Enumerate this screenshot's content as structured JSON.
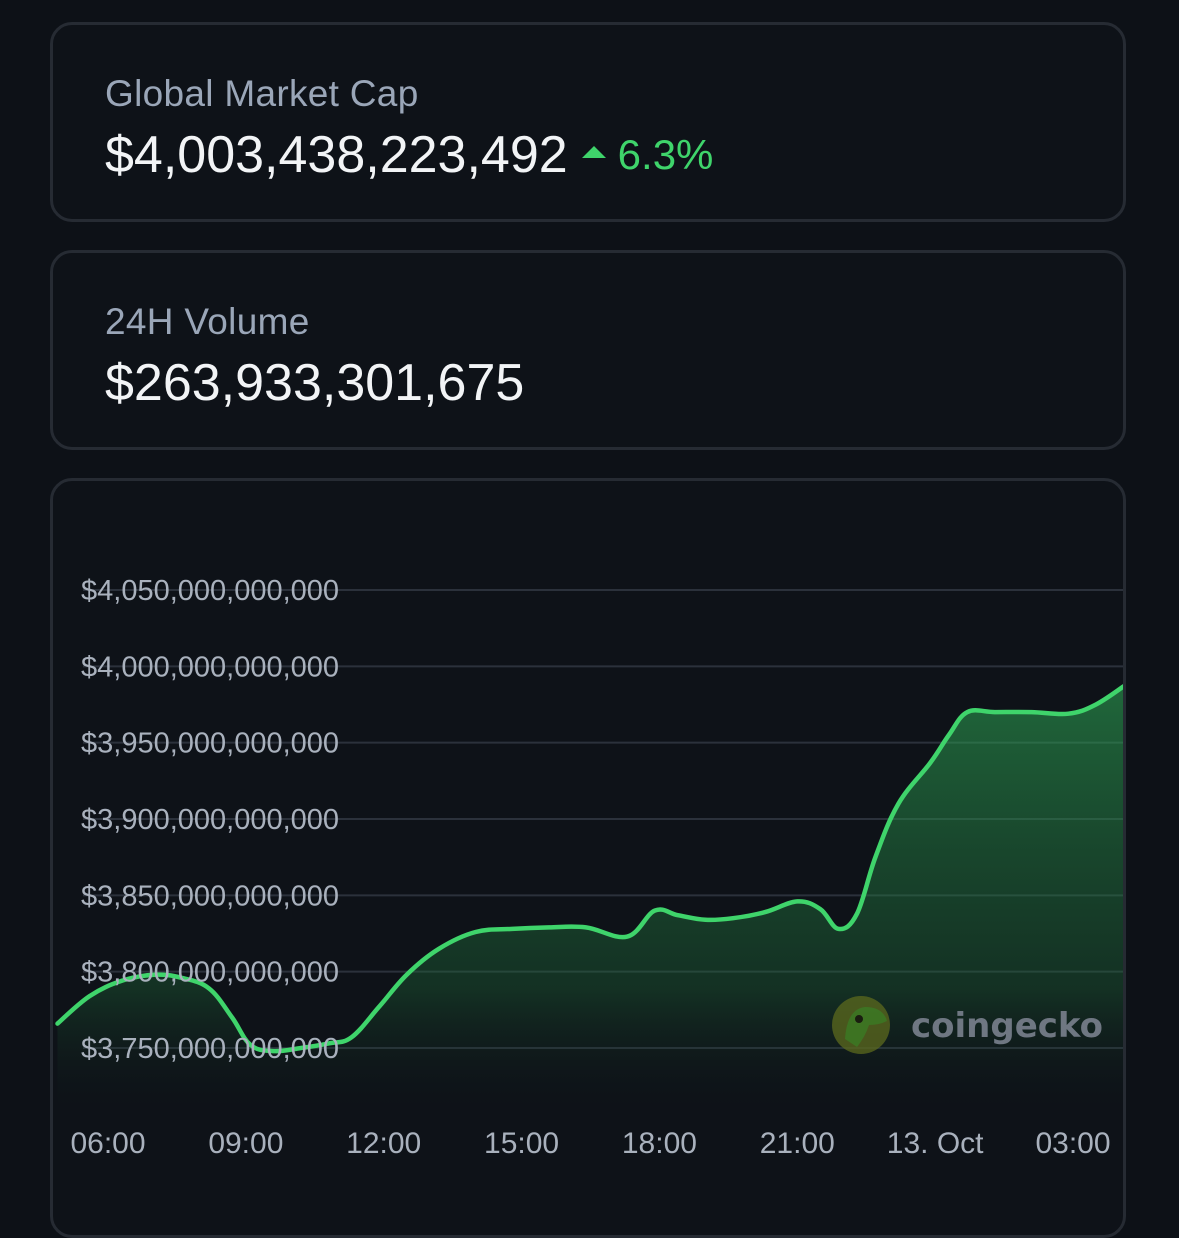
{
  "market_cap": {
    "label": "Global Market Cap",
    "value": "$4,003,438,223,492",
    "change": "6.3%",
    "change_direction": "up",
    "change_color": "#3fd46b",
    "change_icon": "triangle-up-icon"
  },
  "volume": {
    "label": "24H Volume",
    "value": "$263,933,301,675"
  },
  "watermark": {
    "text": "coingecko",
    "icon": "coingecko-logo"
  },
  "chart_data": {
    "type": "area",
    "title": "",
    "xlabel": "",
    "ylabel": "",
    "line_color": "#3fd46b",
    "grid": true,
    "ylim": [
      3730000000000,
      4080000000000
    ],
    "y_ticks": [
      3750000000000,
      3800000000000,
      3850000000000,
      3900000000000,
      3950000000000,
      4000000000000,
      4050000000000
    ],
    "y_tick_labels": [
      "$3,750,000,000,000",
      "$3,800,000,000,000",
      "$3,850,000,000,000",
      "$3,900,000,000,000",
      "$3,950,000,000,000",
      "$4,000,000,000,000",
      "$4,050,000,000,000"
    ],
    "x_tick_labels": [
      "06:00",
      "09:00",
      "12:00",
      "15:00",
      "18:00",
      "21:00",
      "13. Oct",
      "03:00"
    ],
    "x_tick_hours": [
      6,
      9,
      12,
      15,
      18,
      21,
      24,
      27
    ],
    "x_range_hours": [
      4.9,
      28.2
    ],
    "x_unit": "hour (12 Oct; 24 = 13 Oct 00:00)",
    "points": [
      {
        "x": 4.9,
        "y": 3766000000000
      },
      {
        "x": 5.6,
        "y": 3784000000000
      },
      {
        "x": 6.3,
        "y": 3794000000000
      },
      {
        "x": 7.0,
        "y": 3798000000000
      },
      {
        "x": 7.6,
        "y": 3796000000000
      },
      {
        "x": 8.2,
        "y": 3789000000000
      },
      {
        "x": 8.7,
        "y": 3770000000000
      },
      {
        "x": 9.1,
        "y": 3752000000000
      },
      {
        "x": 9.6,
        "y": 3748000000000
      },
      {
        "x": 10.2,
        "y": 3750000000000
      },
      {
        "x": 10.8,
        "y": 3753000000000
      },
      {
        "x": 11.3,
        "y": 3757000000000
      },
      {
        "x": 11.9,
        "y": 3777000000000
      },
      {
        "x": 12.5,
        "y": 3798000000000
      },
      {
        "x": 13.2,
        "y": 3815000000000
      },
      {
        "x": 14.0,
        "y": 3826000000000
      },
      {
        "x": 14.8,
        "y": 3828000000000
      },
      {
        "x": 15.6,
        "y": 3829000000000
      },
      {
        "x": 16.4,
        "y": 3829000000000
      },
      {
        "x": 17.3,
        "y": 3823000000000
      },
      {
        "x": 17.9,
        "y": 3840000000000
      },
      {
        "x": 18.4,
        "y": 3837000000000
      },
      {
        "x": 19.0,
        "y": 3834000000000
      },
      {
        "x": 19.6,
        "y": 3835000000000
      },
      {
        "x": 20.3,
        "y": 3839000000000
      },
      {
        "x": 21.0,
        "y": 3846000000000
      },
      {
        "x": 21.5,
        "y": 3841000000000
      },
      {
        "x": 21.9,
        "y": 3828000000000
      },
      {
        "x": 22.3,
        "y": 3838000000000
      },
      {
        "x": 22.7,
        "y": 3875000000000
      },
      {
        "x": 23.2,
        "y": 3910000000000
      },
      {
        "x": 23.9,
        "y": 3937000000000
      },
      {
        "x": 24.3,
        "y": 3955000000000
      },
      {
        "x": 24.7,
        "y": 3970000000000
      },
      {
        "x": 25.3,
        "y": 3970000000000
      },
      {
        "x": 26.1,
        "y": 3970000000000
      },
      {
        "x": 26.9,
        "y": 3969000000000
      },
      {
        "x": 27.5,
        "y": 3975000000000
      },
      {
        "x": 28.2,
        "y": 3989000000000
      }
    ]
  }
}
